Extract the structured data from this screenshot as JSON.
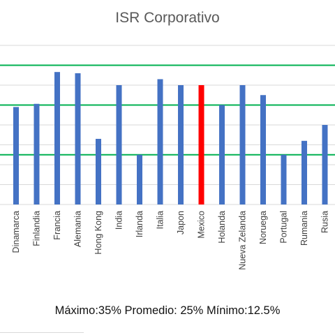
{
  "chart_data": {
    "type": "bar",
    "title": "ISR Corporativo",
    "xlabel": "",
    "ylabel": "",
    "ylim": [
      0,
      40
    ],
    "gridlines": true,
    "categories": [
      "Dinamarca",
      "Finlandia",
      "Francia",
      "Alemania",
      "Hong Kong",
      "India",
      "Irlanda",
      "Italia",
      "Japon",
      "Mexico",
      "Holanda",
      "Nueva Zelanda",
      "Noruega",
      "Portugal",
      "Rumania",
      "Rusia"
    ],
    "values": [
      24.5,
      25.3,
      33.3,
      33.0,
      16.5,
      30.0,
      12.5,
      31.5,
      30.0,
      30.0,
      25.0,
      30.0,
      27.5,
      12.5,
      16.0,
      20.0
    ],
    "colors": {
      "bar": "#4472c4",
      "highlight": "#ff0000",
      "reference": "#00b050",
      "grid": "#d9d9d9"
    },
    "highlight_category": "Mexico",
    "reference_lines": [
      {
        "label": "Máximo",
        "value": 35
      },
      {
        "label": "Promedio",
        "value": 25
      },
      {
        "label": "Mínimo",
        "value": 12.5
      }
    ]
  },
  "footer": {
    "text": "Máximo:35% Promedio: 25% Mínimo:12.5%"
  }
}
